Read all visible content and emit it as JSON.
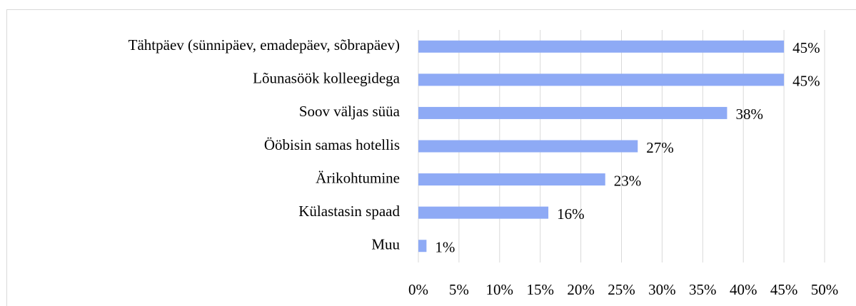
{
  "chart_data": {
    "type": "bar",
    "orientation": "horizontal",
    "categories": [
      "Tähtpäev (sünnipäev, emadepäev, sõbrapäev)",
      "Lõunasöök kolleegidega",
      "Soov väljas süüa",
      "Ööbisin samas hotellis",
      "Ärikohtumine",
      "Külastasin spaad",
      "Muu"
    ],
    "values": [
      45,
      45,
      38,
      27,
      23,
      16,
      1
    ],
    "value_labels": [
      "45%",
      "45%",
      "38%",
      "27%",
      "23%",
      "16%",
      "1%"
    ],
    "color": "#8eaaf5",
    "xlim": [
      0,
      50
    ],
    "xticks": [
      {
        "value": 0,
        "label": "0%"
      },
      {
        "value": 5,
        "label": "5%"
      },
      {
        "value": 10,
        "label": "10%"
      },
      {
        "value": 15,
        "label": "15%"
      },
      {
        "value": 20,
        "label": "20%"
      },
      {
        "value": 25,
        "label": "25%"
      },
      {
        "value": 30,
        "label": "30%"
      },
      {
        "value": 35,
        "label": "35%"
      },
      {
        "value": 40,
        "label": "40%"
      },
      {
        "value": 45,
        "label": "45%"
      },
      {
        "value": 50,
        "label": "50%"
      }
    ],
    "grid": true
  }
}
